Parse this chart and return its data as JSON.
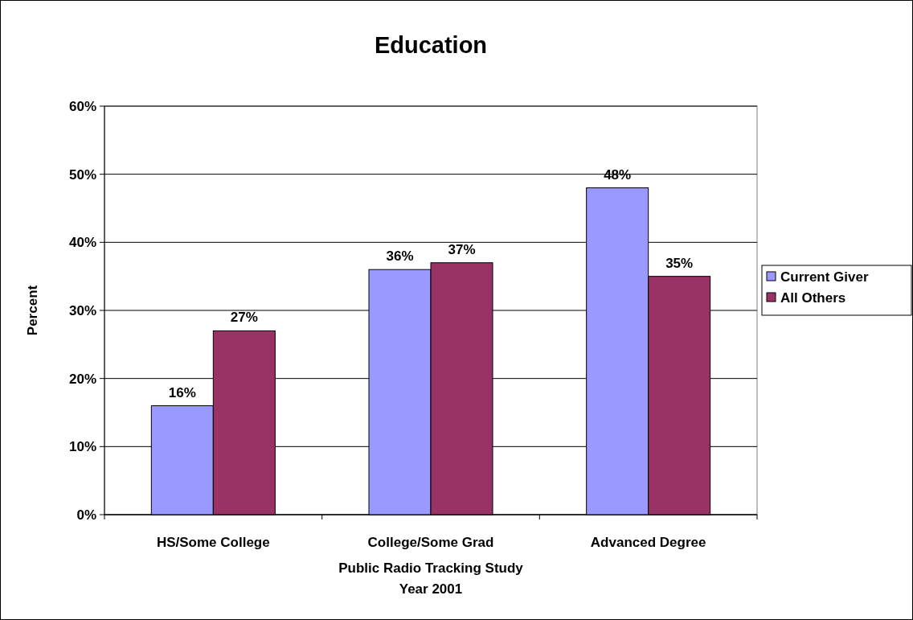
{
  "chart_data": {
    "type": "bar",
    "title": "Education",
    "xlabel": "Public Radio Tracking Study\nYear 2001",
    "ylabel": "Percent",
    "categories": [
      "HS/Some College",
      "College/Some Grad",
      "Advanced Degree"
    ],
    "series": [
      {
        "name": "Current Giver",
        "color": "#9999ff",
        "values": [
          16,
          36,
          48
        ],
        "value_labels": [
          "16%",
          "36%",
          "48%"
        ]
      },
      {
        "name": "All Others",
        "color": "#993366",
        "values": [
          27,
          37,
          35
        ],
        "value_labels": [
          "27%",
          "37%",
          "35%"
        ]
      }
    ],
    "ylim": [
      0,
      60
    ],
    "yticks": [
      {
        "value": 0,
        "label": "0%"
      },
      {
        "value": 10,
        "label": "10%"
      },
      {
        "value": 20,
        "label": "20%"
      },
      {
        "value": 30,
        "label": "30%"
      },
      {
        "value": 40,
        "label": "40%"
      },
      {
        "value": 50,
        "label": "50%"
      },
      {
        "value": 60,
        "label": "60%"
      }
    ],
    "grid": "y",
    "legend": "right"
  }
}
